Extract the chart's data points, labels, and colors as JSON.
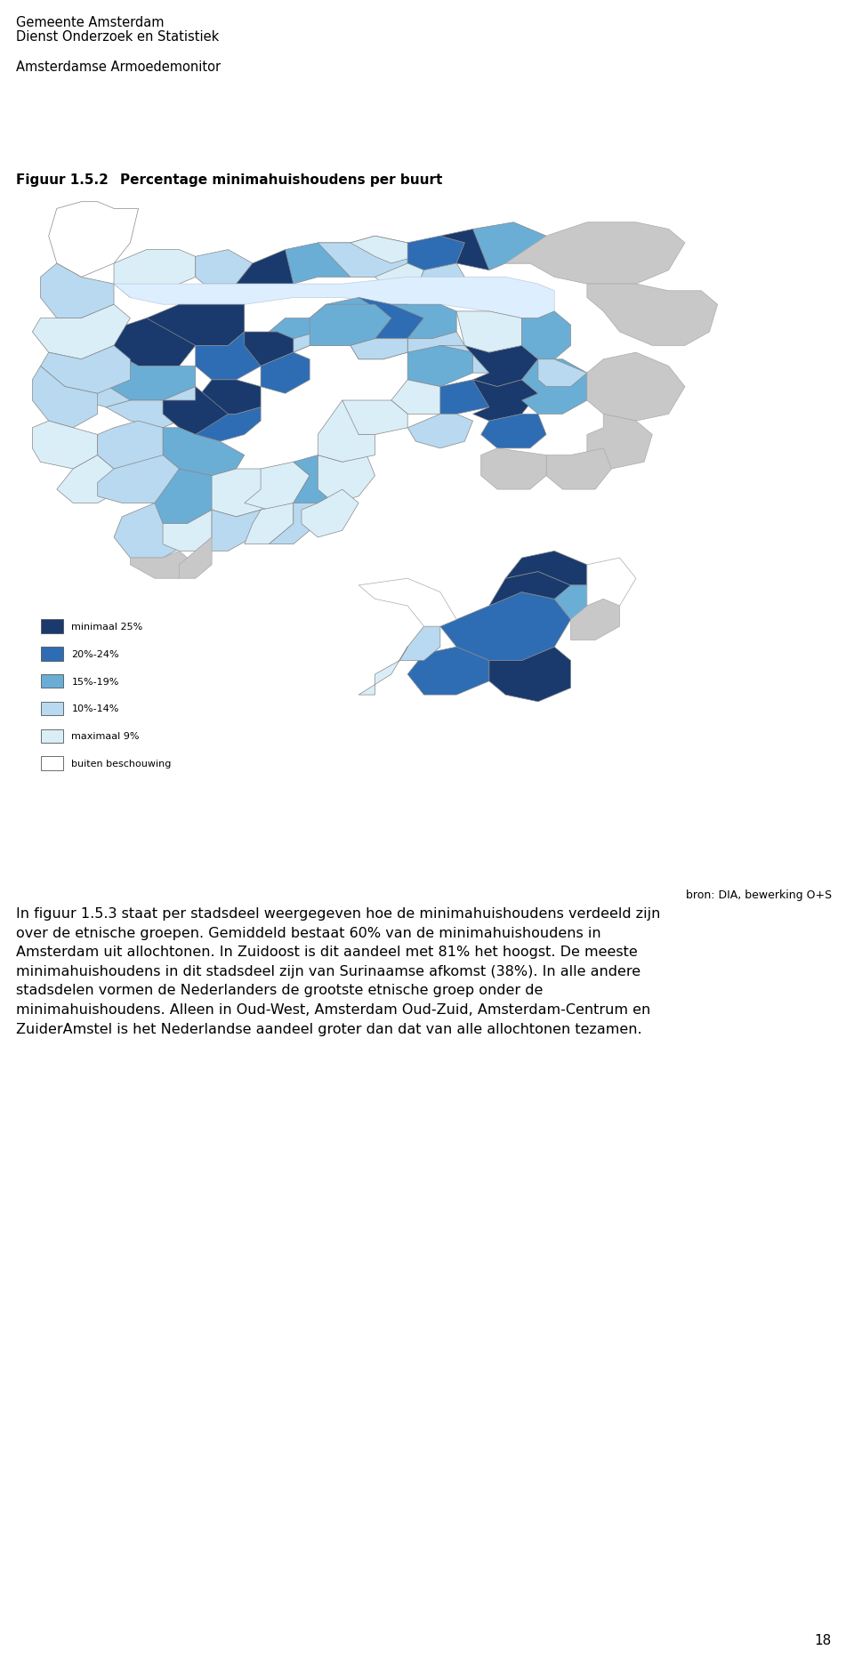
{
  "header_line1": "Gemeente Amsterdam",
  "header_line2": "Dienst Onderzoek en Statistiek",
  "header_line3": "Amsterdamse Armoedemonitor",
  "figure_label": "Figuur 1.5.2",
  "figure_title": "Percentage minimahuishoudens per buurt",
  "source_text": "bron: DIA, bewerking O+S",
  "body_text": "In figuur 1.5.3 staat per stadsdeel weergegeven hoe de minimahuishoudens verdeeld zijn\nover de etnische groepen. Gemiddeld bestaat 60% van de minimahuishoudens in\nAmsterdam uit allochtonen. In Zuidoost is dit aandeel met 81% het hoogst. De meeste\nminimahuishoudens in dit stadsdeel zijn van Surinaamse afkomst (38%). In alle andere\nstadsdelen vormen de Nederlanders de grootste etnische groep onder de\nminimahuishoudens. Alleen in Oud-West, Amsterdam Oud-Zuid, Amsterdam-Centrum en\nZuiderAmstel is het Nederlandse aandeel groter dan dat van alle allochtonen tezamen.",
  "page_number": "18",
  "legend_items": [
    {
      "label": "minimaal 25%",
      "color": "#1a3a6e"
    },
    {
      "label": "20%-24%",
      "color": "#2e6db4"
    },
    {
      "label": "15%-19%",
      "color": "#6aaed6"
    },
    {
      "label": "10%-14%",
      "color": "#b8d9f0"
    },
    {
      "label": "maximaal 9%",
      "color": "#daeef8"
    },
    {
      "label": "buiten beschouwing",
      "color": "#ffffff"
    }
  ],
  "bg_color": "#ffffff",
  "text_color": "#000000",
  "header_fontsize": 10.5,
  "body_fontsize": 11.5,
  "map_border_color": "#999999"
}
